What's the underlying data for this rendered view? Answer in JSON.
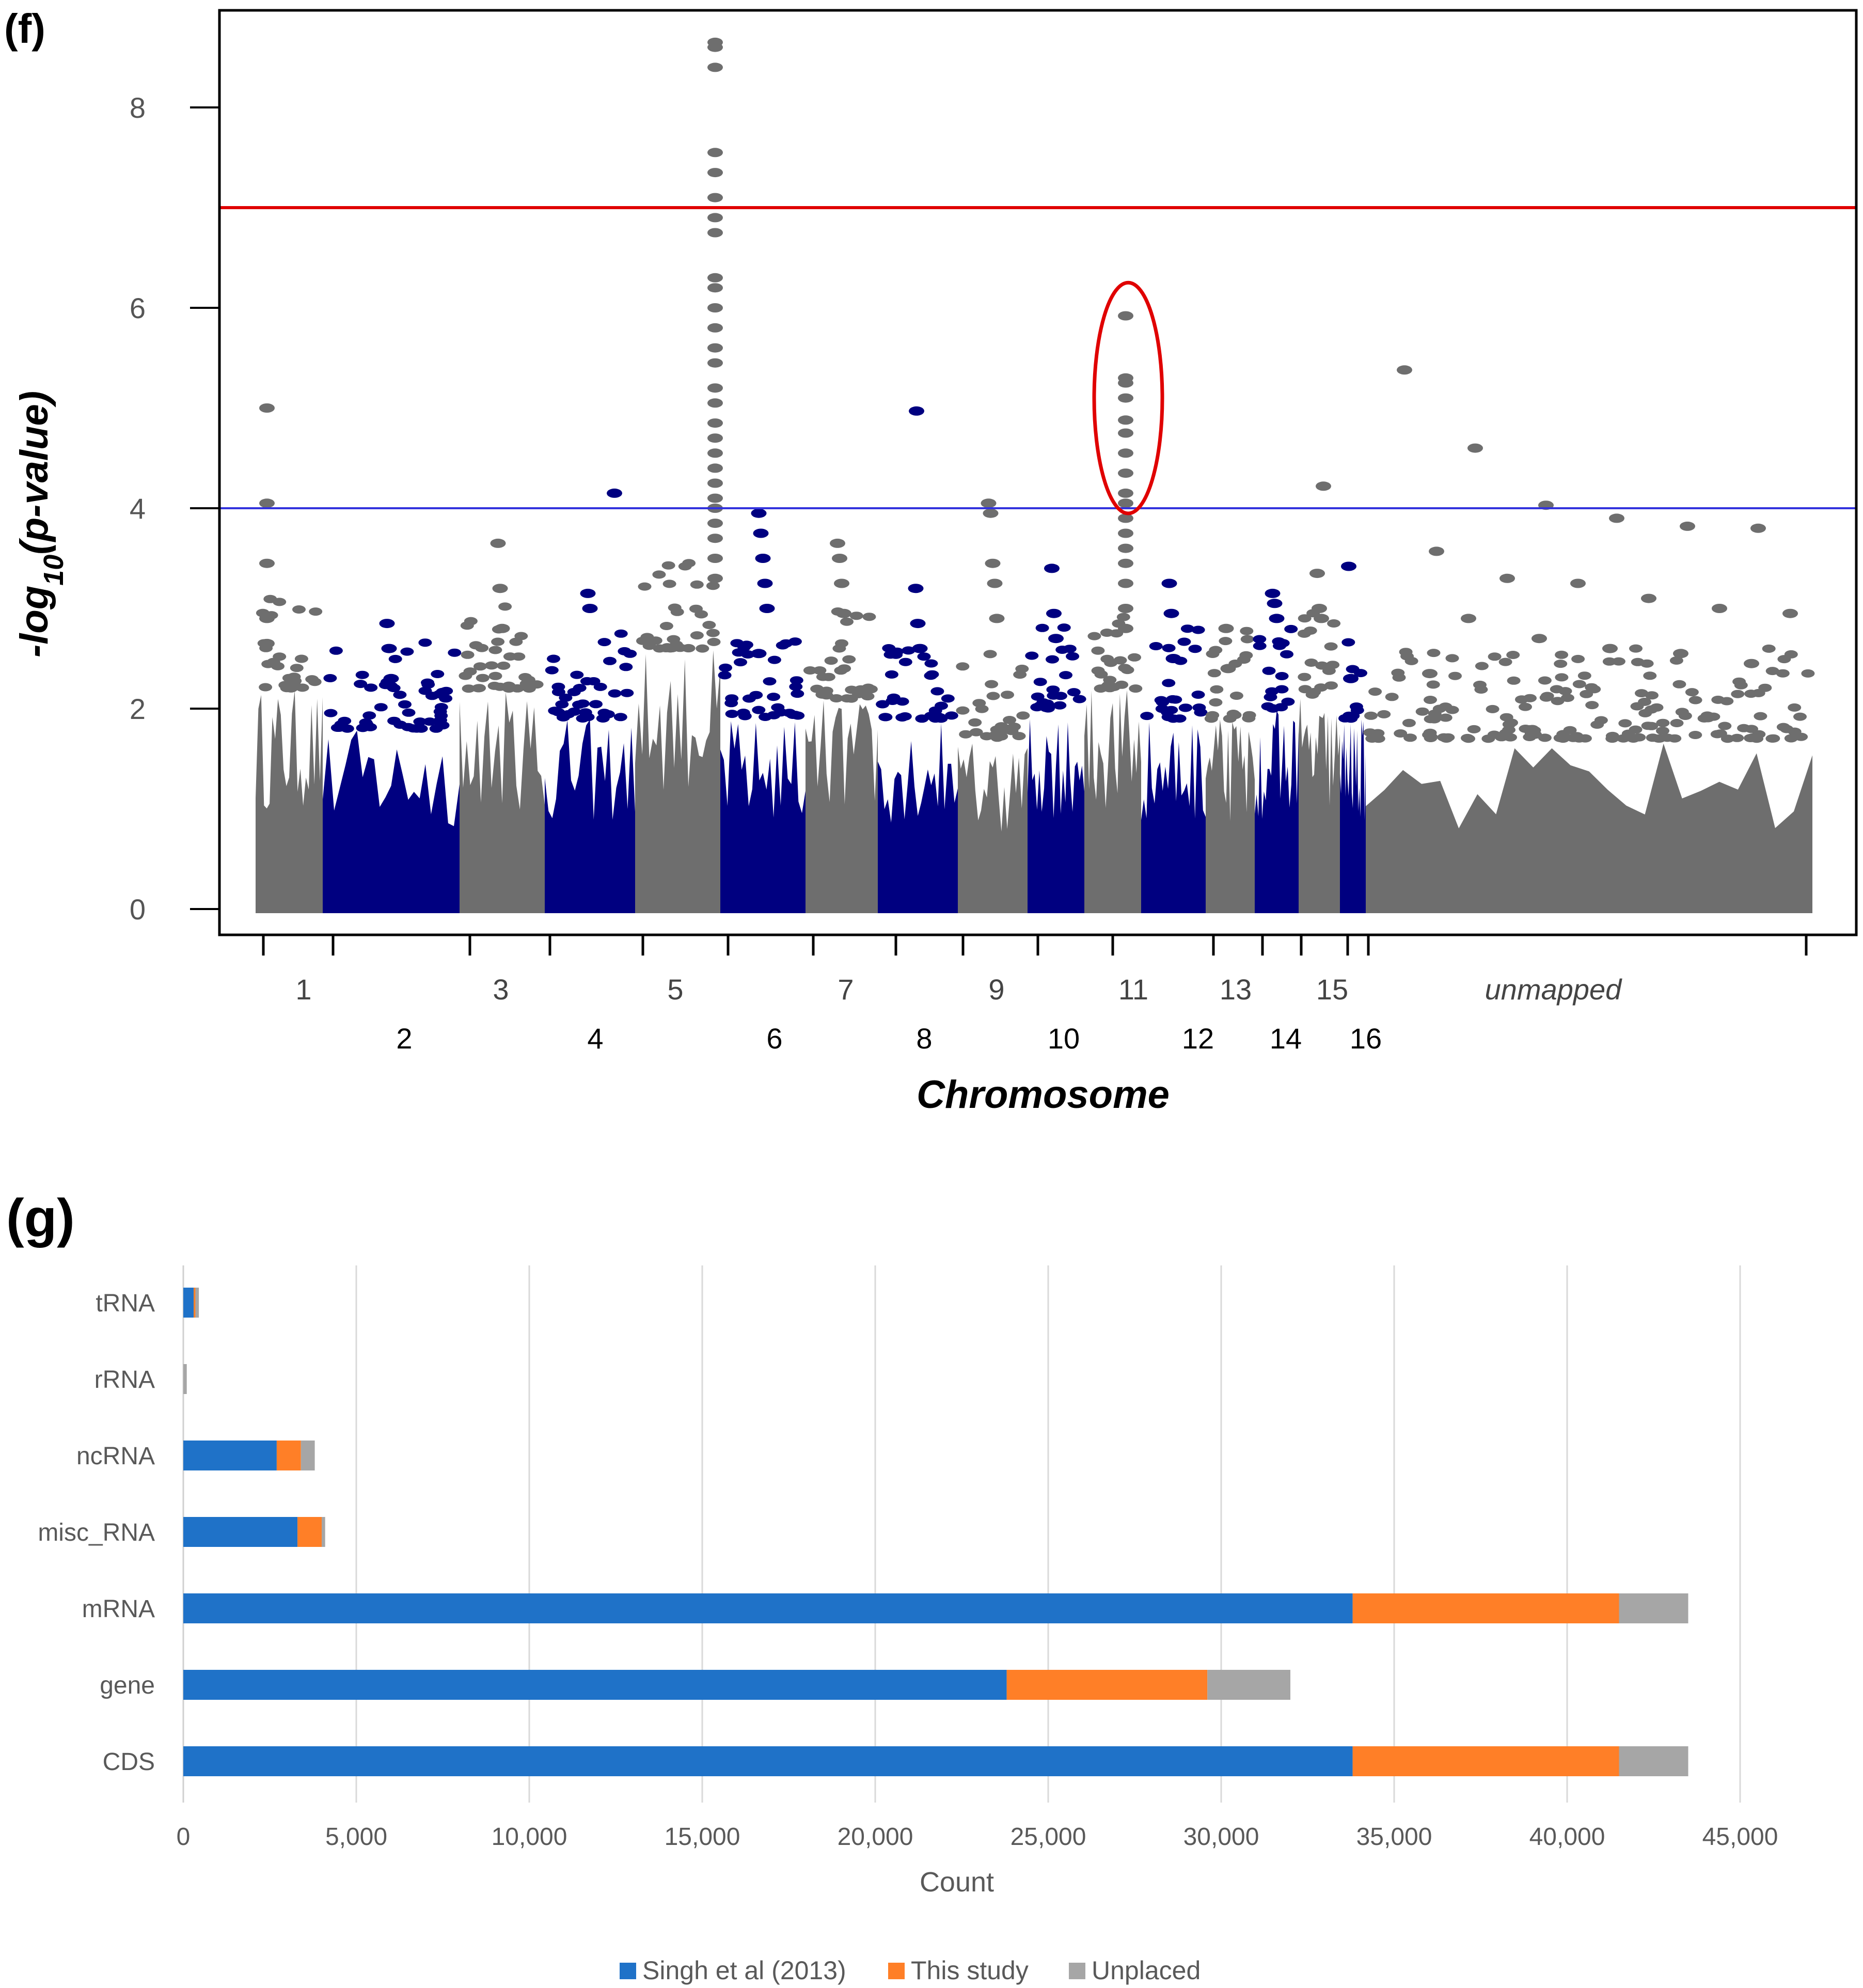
{
  "panels": {
    "f": {
      "letter": "(f)"
    },
    "g": {
      "letter": "(g)"
    }
  },
  "chart_data": [
    {
      "type": "scatter",
      "subtype": "manhattan",
      "title": "",
      "xlabel": "Chromosome",
      "ylabel": "-log10(p-value)",
      "ylabel_parts": {
        "prefix": "-log",
        "subscript": "10",
        "suffix": "(p-value)"
      },
      "ylim": [
        0,
        8.8
      ],
      "yticks": [
        "0",
        "2",
        "4",
        "6",
        "8"
      ],
      "threshold_lines": [
        {
          "name": "genome-wide significance",
          "value": 7,
          "color": "#e00000"
        },
        {
          "name": "suggestive",
          "value": 4,
          "color": "#3333dd"
        }
      ],
      "highlight": {
        "chromosome": "11",
        "y_range": [
          4.0,
          6.2
        ],
        "shape": "ellipse",
        "color": "#e00000"
      },
      "colors": {
        "gray": "#6e6e6e",
        "navy": "#000080"
      },
      "chromosomes": [
        {
          "label": "1",
          "row": 1,
          "color": "gray",
          "peak": 2.2,
          "tops": [
            5.0,
            4.05,
            3.45,
            2.9,
            2.65
          ]
        },
        {
          "label": "2",
          "row": 2,
          "color": "navy",
          "peak": 1.8,
          "tops": [
            2.85,
            2.6,
            2.3
          ]
        },
        {
          "label": "3",
          "row": 1,
          "color": "gray",
          "peak": 2.2,
          "tops": [
            3.65,
            3.2,
            2.8
          ]
        },
        {
          "label": "4",
          "row": 2,
          "color": "navy",
          "peak": 1.9,
          "tops": [
            4.15,
            3.15,
            3.0
          ]
        },
        {
          "label": "5",
          "row": 1,
          "color": "gray",
          "peak": 2.6,
          "tops": [
            8.65,
            8.6,
            8.4,
            7.55,
            7.35,
            7.1,
            6.9,
            6.75,
            6.3,
            6.2,
            6.0,
            5.8,
            5.6,
            5.45,
            5.2,
            5.05,
            4.85,
            4.7,
            4.55,
            4.4,
            4.25,
            4.1,
            4.0,
            3.85,
            3.7,
            3.5,
            3.3
          ]
        },
        {
          "label": "6",
          "row": 2,
          "color": "navy",
          "peak": 1.9,
          "tops": [
            3.95,
            3.75,
            3.5,
            3.25,
            3.0,
            2.55
          ]
        },
        {
          "label": "7",
          "row": 1,
          "color": "gray",
          "peak": 2.1,
          "tops": [
            3.65,
            3.5,
            3.25,
            2.95
          ]
        },
        {
          "label": "8",
          "row": 2,
          "color": "navy",
          "peak": 1.9,
          "tops": [
            4.97,
            3.2,
            2.85,
            2.6
          ]
        },
        {
          "label": "9",
          "row": 1,
          "color": "gray",
          "peak": 1.7,
          "tops": [
            4.05,
            3.95,
            3.45,
            3.25,
            2.9
          ]
        },
        {
          "label": "10",
          "row": 2,
          "color": "navy",
          "peak": 2.0,
          "tops": [
            3.4,
            2.95,
            2.7
          ]
        },
        {
          "label": "11",
          "row": 1,
          "color": "gray",
          "peak": 2.2,
          "tops": [
            5.92,
            5.3,
            5.25,
            5.1,
            4.88,
            4.75,
            4.55,
            4.35,
            4.15,
            4.05,
            3.9,
            3.75,
            3.6,
            3.45,
            3.25,
            3.0,
            2.8
          ]
        },
        {
          "label": "12",
          "row": 2,
          "color": "navy",
          "peak": 1.9,
          "tops": [
            3.25,
            2.95,
            2.5
          ]
        },
        {
          "label": "13",
          "row": 1,
          "color": "gray",
          "peak": 1.9,
          "tops": [
            2.8,
            2.4
          ]
        },
        {
          "label": "14",
          "row": 2,
          "color": "navy",
          "peak": 2.0,
          "tops": [
            3.15,
            3.05,
            2.9
          ]
        },
        {
          "label": "15",
          "row": 1,
          "color": "gray",
          "peak": 2.1,
          "tops": [
            4.22,
            3.35,
            3.0,
            2.9
          ]
        },
        {
          "label": "16",
          "row": 2,
          "color": "navy",
          "peak": 1.9,
          "tops": [
            3.42,
            2.3
          ]
        },
        {
          "label": "unmapped",
          "row": 1,
          "color": "gray",
          "peak": 1.7,
          "tops": [
            5.38,
            4.6,
            4.03,
            3.9,
            3.82,
            3.8,
            3.57,
            3.3,
            3.25,
            3.1,
            3.0,
            2.95,
            2.9,
            2.7,
            2.6,
            2.55,
            2.45,
            2.35
          ]
        }
      ]
    },
    {
      "type": "bar",
      "orientation": "horizontal",
      "stacked": true,
      "title": "",
      "xlabel": "Count",
      "ylabel": "",
      "xlim": [
        0,
        45000
      ],
      "xticks": [
        "0",
        "5,000",
        "10,000",
        "15,000",
        "20,000",
        "25,000",
        "30,000",
        "35,000",
        "40,000",
        "45,000"
      ],
      "legend_position": "bottom",
      "categories": [
        "tRNA",
        "rRNA",
        "ncRNA",
        "misc_RNA",
        "mRNA",
        "gene",
        "CDS"
      ],
      "series": [
        {
          "name": "Singh et al (2013)",
          "color": "#1f72c8",
          "values": [
            300,
            0,
            2700,
            3300,
            33800,
            23800,
            33800
          ]
        },
        {
          "name": "This study",
          "color": "#ff7f27",
          "values": [
            50,
            0,
            700,
            700,
            7700,
            5800,
            7700
          ]
        },
        {
          "name": "Unplaced",
          "color": "#a6a6a6",
          "values": [
            100,
            100,
            400,
            100,
            2000,
            2400,
            2000
          ]
        }
      ]
    }
  ]
}
